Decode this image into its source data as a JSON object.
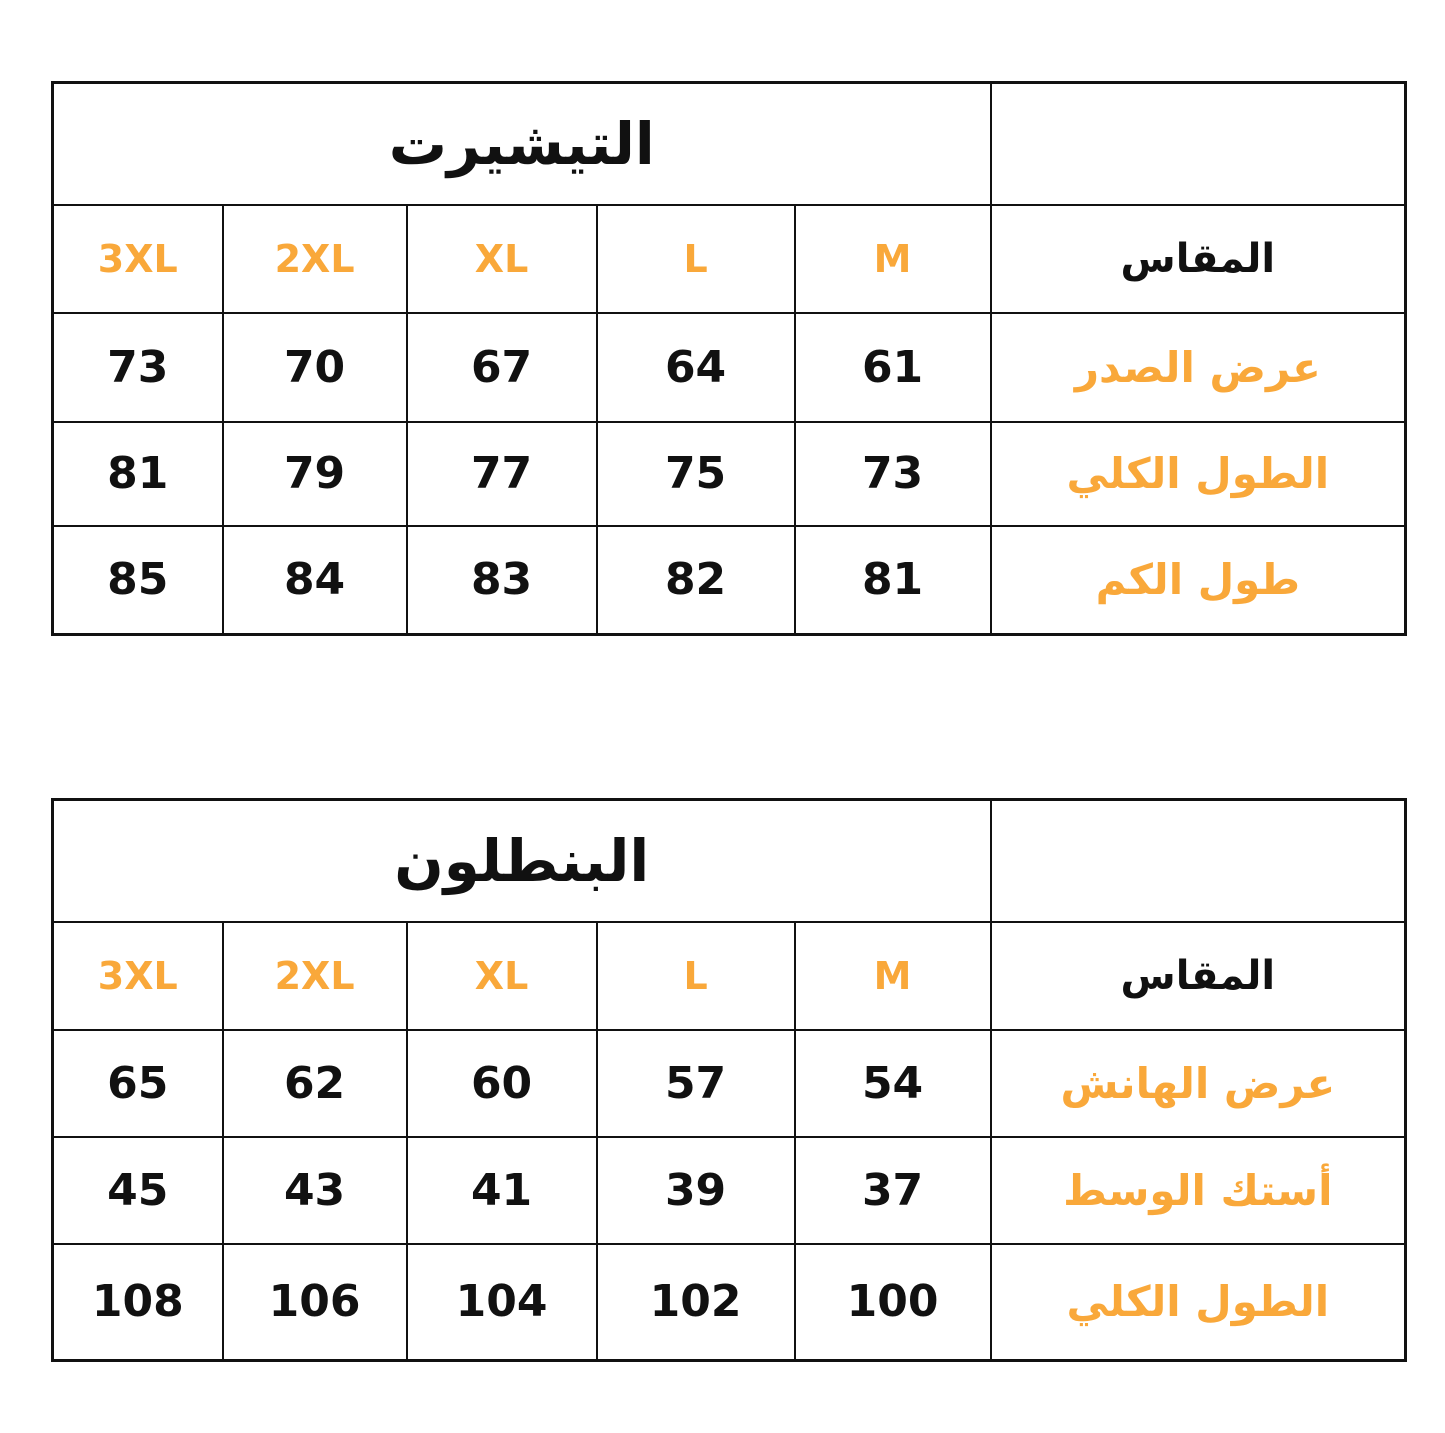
{
  "accent_color": "#F9A83A",
  "tables": [
    {
      "title": "التيشيرت",
      "size_header": "المقاس",
      "sizes": [
        "M",
        "L",
        "XL",
        "2XL",
        "3XL"
      ],
      "rows": [
        {
          "label": "عرض الصدر",
          "values": [
            "61",
            "64",
            "67",
            "70",
            "73"
          ]
        },
        {
          "label": "الطول الكلي",
          "values": [
            "73",
            "75",
            "77",
            "79",
            "81"
          ]
        },
        {
          "label": "طول الكم",
          "values": [
            "81",
            "82",
            "83",
            "84",
            "85"
          ]
        }
      ]
    },
    {
      "title": "البنطلون",
      "size_header": "المقاس",
      "sizes": [
        "M",
        "L",
        "XL",
        "2XL",
        "3XL"
      ],
      "rows": [
        {
          "label": "عرض الهانش",
          "values": [
            "54",
            "57",
            "60",
            "62",
            "65"
          ]
        },
        {
          "label": "أستك الوسط",
          "values": [
            "37",
            "39",
            "41",
            "43",
            "45"
          ]
        },
        {
          "label": "الطول الكلي",
          "values": [
            "100",
            "102",
            "104",
            "106",
            "108"
          ]
        }
      ]
    }
  ]
}
